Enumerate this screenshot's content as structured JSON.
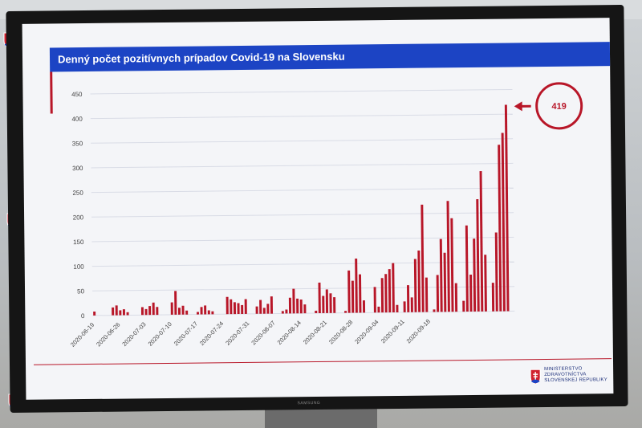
{
  "colors": {
    "bar": "#b81628",
    "title_bg": "#1c44c4",
    "grid": "#d9dce6",
    "accent": "#b81628"
  },
  "ministry": {
    "icon": "slovak-coat-of-arms-icon",
    "lines": [
      "MINISTERSTVO",
      "ZDRAVOTNÍCTVA",
      "SLOVENSKEJ REPUBLIKY"
    ]
  },
  "callout": {
    "value": "419",
    "icon": "arrow-left-icon"
  },
  "monitor_brand": "SAMSUNG",
  "chart_data": {
    "type": "bar",
    "title": "Denný počet pozitívnych prípadov Covid-19 na Slovensku",
    "xlabel": "",
    "ylabel": "",
    "ylim": [
      0,
      450
    ],
    "yticks": [
      0,
      50,
      100,
      150,
      200,
      250,
      300,
      350,
      400,
      450
    ],
    "grid": true,
    "xtick_labels": [
      "2020-06-19",
      "2020-06-26",
      "2020-07-03",
      "2020-07-10",
      "2020-07-17",
      "2020-07-24",
      "2020-07-31",
      "2020-08-07",
      "2020-08-14",
      "2020-08-21",
      "2020-08-28",
      "2020-09-04",
      "2020-09-11",
      "2020-09-18"
    ],
    "x_start": "2020-06-19",
    "x_end": "2020-09-23",
    "values": [
      8,
      0,
      0,
      0,
      0,
      16,
      20,
      10,
      12,
      6,
      0,
      0,
      0,
      16,
      12,
      18,
      25,
      16,
      0,
      0,
      0,
      25,
      48,
      14,
      18,
      8,
      0,
      0,
      5,
      15,
      18,
      8,
      6,
      0,
      0,
      0,
      35,
      30,
      24,
      22,
      18,
      30,
      0,
      0,
      15,
      28,
      12,
      20,
      35,
      0,
      0,
      5,
      8,
      32,
      50,
      30,
      28,
      18,
      0,
      0,
      5,
      62,
      35,
      48,
      40,
      32,
      0,
      0,
      4,
      86,
      65,
      110,
      78,
      25,
      0,
      0,
      52,
      12,
      70,
      78,
      88,
      100,
      15,
      0,
      22,
      55,
      30,
      108,
      125,
      218,
      70,
      0,
      5,
      75,
      148,
      120,
      225,
      190,
      58,
      0,
      22,
      175,
      75,
      148,
      228,
      285,
      115,
      0,
      58,
      160,
      338,
      362,
      419
    ]
  }
}
